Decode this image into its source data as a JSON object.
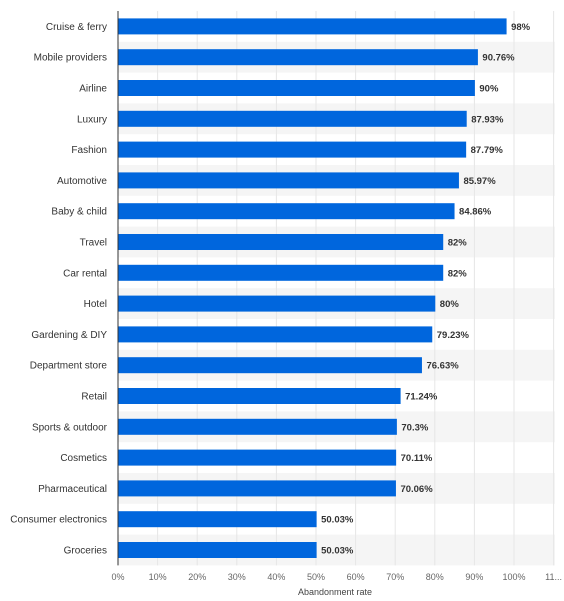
{
  "chart_data": {
    "type": "bar",
    "orientation": "horizontal",
    "categories": [
      "Cruise & ferry",
      "Mobile providers",
      "Airline",
      "Luxury",
      "Fashion",
      "Automotive",
      "Baby & child",
      "Travel",
      "Car rental",
      "Hotel",
      "Gardening & DIY",
      "Department store",
      "Retail",
      "Sports & outdoor",
      "Cosmetics",
      "Pharmaceutical",
      "Consumer electronics",
      "Groceries"
    ],
    "values": [
      98,
      90.76,
      90,
      87.93,
      87.79,
      85.97,
      84.86,
      82,
      82,
      80,
      79.23,
      76.63,
      71.24,
      70.3,
      70.11,
      70.06,
      50.03,
      50.03
    ],
    "value_labels": [
      "98%",
      "90.76%",
      "90%",
      "87.93%",
      "87.79%",
      "85.97%",
      "84.86%",
      "82%",
      "82%",
      "80%",
      "79.23%",
      "76.63%",
      "71.24%",
      "70.3%",
      "70.11%",
      "70.06%",
      "50.03%",
      "50.03%"
    ],
    "x_ticks": [
      "0%",
      "10%",
      "20%",
      "30%",
      "40%",
      "50%",
      "60%",
      "70%",
      "80%",
      "90%",
      "100%",
      "11..."
    ],
    "xlabel": "Abandonment rate",
    "ylabel": "",
    "title": "",
    "xlim": [
      0,
      110
    ],
    "bar_color": "#0066dd",
    "alternate_row_shading": "#f5f5f5",
    "grid": true
  }
}
